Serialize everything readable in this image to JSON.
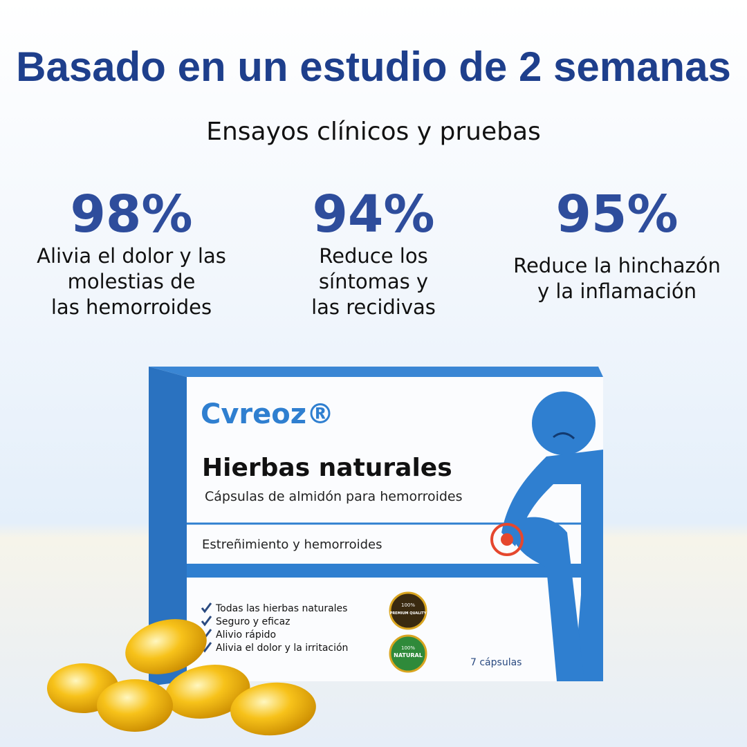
{
  "header": {
    "title": "Basado en un estudio de 2 semanas",
    "subtitle": "Ensayos clínicos y pruebas"
  },
  "stats": [
    {
      "value": "98%",
      "label_lines": [
        "Alivia el dolor y las",
        "molestias de",
        "las hemorroides"
      ]
    },
    {
      "value": "94%",
      "label_lines": [
        "Reduce los",
        "síntomas y",
        "las recidivas"
      ]
    },
    {
      "value": "95%",
      "label_lines": [
        "Reduce la hinchazón",
        "y la inflamación"
      ]
    }
  ],
  "product": {
    "brand": "Cvreoz®",
    "name": "Hierbas naturales",
    "description": "Cápsulas de almidón para hemorroides",
    "tagline": "Estreñimiento y hemorroides",
    "benefits": [
      "Todas las hierbas naturales",
      "Seguro y eficaz",
      "Alivio rápido",
      "Alivia el dolor y la irritación"
    ],
    "count": "7 cápsulas",
    "badges": [
      {
        "top": "100%",
        "label": "PREMIUM QUALITY"
      },
      {
        "top": "100%",
        "label": "NATURAL"
      }
    ]
  }
}
